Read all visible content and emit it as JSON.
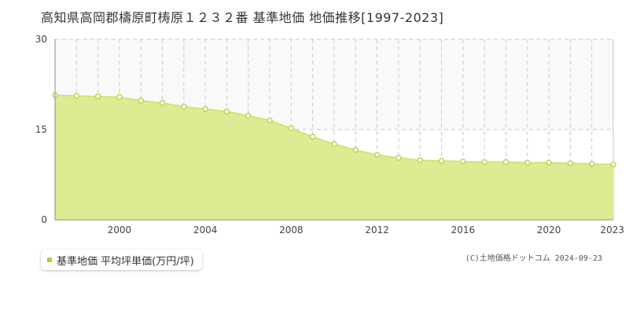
{
  "title": "高知県高岡郡檮原町梼原１２３２番 基準地価 地価推移[1997-2023]",
  "legend": {
    "label": "基準地価 平均坪単価(万円/坪)",
    "color": "#a8d23c"
  },
  "copyright": "(C)土地価格ドットコム 2024-09-23",
  "colors": {
    "area": "#dcec92",
    "line": "#c8e264",
    "point": "#ffffff",
    "point_stroke": "#b8d650",
    "grid": "#c8c8c8",
    "axis": "#888888",
    "band": "#f9f9f9"
  },
  "chart_data": {
    "type": "area",
    "x": [
      1997,
      1998,
      1999,
      2000,
      2001,
      2002,
      2003,
      2004,
      2005,
      2006,
      2007,
      2008,
      2009,
      2010,
      2011,
      2012,
      2013,
      2014,
      2015,
      2016,
      2017,
      2018,
      2019,
      2020,
      2021,
      2022,
      2023
    ],
    "series": [
      {
        "values": [
          20.7,
          20.6,
          20.5,
          20.4,
          19.8,
          19.4,
          18.8,
          18.4,
          18.0,
          17.3,
          16.5,
          15.2,
          13.8,
          12.6,
          11.6,
          10.8,
          10.3,
          9.9,
          9.8,
          9.7,
          9.6,
          9.6,
          9.5,
          9.5,
          9.4,
          9.3,
          9.2
        ]
      }
    ],
    "x_ticks": [
      "2000",
      "2004",
      "2008",
      "2012",
      "2016",
      "2020",
      "2023"
    ],
    "x_tick_values": [
      2000,
      2004,
      2008,
      2012,
      2016,
      2020,
      2023
    ],
    "y_ticks": [
      "0",
      "15",
      "30"
    ],
    "y_tick_values": [
      0,
      15,
      30
    ],
    "xlim": [
      1997,
      2023
    ],
    "ylim": [
      0,
      30
    ],
    "grid": true,
    "legend_position": "bottom-left"
  }
}
